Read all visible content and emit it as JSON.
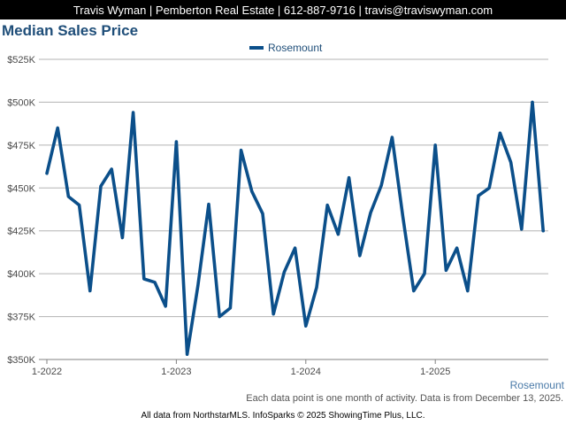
{
  "header": {
    "banner_text": "Travis Wyman | Pemberton Real Estate | 612-887-9716 | travis@traviswyman.com"
  },
  "colors": {
    "series": "#0b4f8a",
    "title": "#1f4e79",
    "grid": "#b3b3b3",
    "axis_text": "#4a4a4a",
    "watermark": "#4a7aa8"
  },
  "chart_data": {
    "type": "line",
    "title": "Median Sales Price",
    "xlabel": "",
    "ylabel": "",
    "ylim": [
      350000,
      525000
    ],
    "yticks": [
      {
        "value": 350000,
        "label": "$350K"
      },
      {
        "value": 375000,
        "label": "$375K"
      },
      {
        "value": 400000,
        "label": "$400K"
      },
      {
        "value": 425000,
        "label": "$425K"
      },
      {
        "value": 450000,
        "label": "$450K"
      },
      {
        "value": 475000,
        "label": "$475K"
      },
      {
        "value": 500000,
        "label": "$500K"
      },
      {
        "value": 525000,
        "label": "$525K"
      }
    ],
    "xticks": [
      {
        "date": "2022-01",
        "label": "1-2022"
      },
      {
        "date": "2023-01",
        "label": "1-2023"
      },
      {
        "date": "2024-01",
        "label": "1-2024"
      },
      {
        "date": "2025-01",
        "label": "1-2025"
      }
    ],
    "x_range": [
      "2022-01",
      "2025-11"
    ],
    "grid": true,
    "legend_position": "top-center",
    "series": [
      {
        "name": "Rosemount",
        "x": [
          "2022-01",
          "2022-02",
          "2022-03",
          "2022-04",
          "2022-05",
          "2022-06",
          "2022-07",
          "2022-08",
          "2022-09",
          "2022-10",
          "2022-11",
          "2022-12",
          "2023-01",
          "2023-02",
          "2023-03",
          "2023-04",
          "2023-05",
          "2023-06",
          "2023-07",
          "2023-08",
          "2023-09",
          "2023-10",
          "2023-11",
          "2023-12",
          "2024-01",
          "2024-02",
          "2024-03",
          "2024-04",
          "2024-05",
          "2024-06",
          "2024-07",
          "2024-08",
          "2024-09",
          "2024-10",
          "2024-11",
          "2024-12",
          "2025-01",
          "2025-02",
          "2025-03",
          "2025-04",
          "2025-05",
          "2025-06",
          "2025-07",
          "2025-08",
          "2025-09",
          "2025-10",
          "2025-11"
        ],
        "values": [
          458500,
          485000,
          445000,
          440000,
          390000,
          451000,
          461000,
          421000,
          494000,
          397000,
          395000,
          381000,
          477000,
          353000,
          393000,
          440500,
          375000,
          380000,
          472000,
          448000,
          435000,
          376500,
          401000,
          415000,
          369500,
          392000,
          440000,
          423000,
          456000,
          410500,
          435500,
          451500,
          479500,
          433000,
          390000,
          400000,
          475000,
          402000,
          415000,
          390000,
          445500,
          450000,
          482000,
          465000,
          426000,
          500000,
          425000
        ]
      }
    ]
  },
  "watermark": "Rosemount",
  "footer": {
    "note": "Each data point is one month of activity. Data is from December 13, 2025.",
    "credits": "All data from NorthstarMLS. InfoSparks © 2025 ShowingTime Plus, LLC."
  }
}
